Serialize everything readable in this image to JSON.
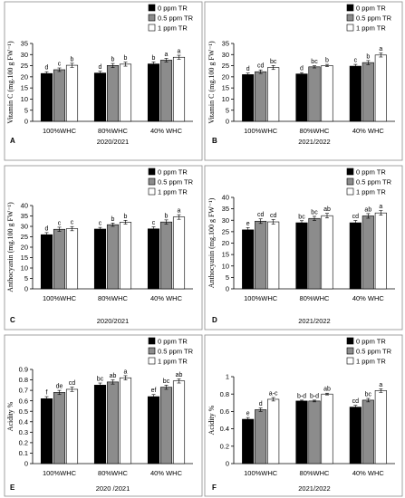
{
  "colors": {
    "series": [
      "#000000",
      "#8c8c8c",
      "#ffffff"
    ]
  },
  "chart_data": [
    {
      "type": "bar",
      "panel": "A",
      "ylabel": "Vitamin C (mg.100 g FW⁻¹)",
      "xlabel": "2020/2021",
      "categories": [
        "100%WHC",
        "80%WHC",
        "40% WHC"
      ],
      "ylim": [
        0,
        35
      ],
      "yticks": [
        0,
        5,
        10,
        15,
        20,
        25,
        30,
        35
      ],
      "legend_position": "top-right",
      "grid": false,
      "series": [
        {
          "name": "0 ppm TR",
          "values": [
            21.5,
            21.7,
            25.8
          ],
          "errors": [
            0.8,
            0.8,
            0.9
          ],
          "letters": [
            "d",
            "d",
            "b"
          ]
        },
        {
          "name": "0.5 ppm TR",
          "values": [
            23.2,
            25.1,
            27.5
          ],
          "errors": [
            0.8,
            0.9,
            0.8
          ],
          "letters": [
            "c",
            "b",
            "a"
          ]
        },
        {
          "name": "1 ppm TR",
          "values": [
            25.2,
            25.7,
            28.8
          ],
          "errors": [
            0.9,
            0.9,
            0.9
          ],
          "letters": [
            "b",
            "b",
            "a"
          ]
        }
      ]
    },
    {
      "type": "bar",
      "panel": "B",
      "ylabel": "Vitamin C (mg.100 g FW⁻¹)",
      "xlabel": "2021/2022",
      "categories": [
        "100%WHC",
        "80%WHC",
        "40% WHC"
      ],
      "ylim": [
        0,
        35
      ],
      "yticks": [
        0,
        5,
        10,
        15,
        20,
        25,
        30,
        35
      ],
      "legend_position": "top-right",
      "grid": false,
      "series": [
        {
          "name": "0 ppm TR",
          "values": [
            21.0,
            21.3,
            24.8
          ],
          "errors": [
            0.7,
            0.6,
            0.8
          ],
          "letters": [
            "d",
            "d",
            "c"
          ]
        },
        {
          "name": "0.5 ppm TR",
          "values": [
            22.3,
            24.5,
            26.4
          ],
          "errors": [
            0.8,
            0.5,
            0.9
          ],
          "letters": [
            "cd",
            "bc",
            "b"
          ]
        },
        {
          "name": "1 ppm TR",
          "values": [
            24.2,
            25.1,
            29.8
          ],
          "errors": [
            0.9,
            0.5,
            0.9
          ],
          "letters": [
            "bc",
            "b",
            "a"
          ]
        }
      ]
    },
    {
      "type": "bar",
      "panel": "C",
      "ylabel": "Anthocyanin  (mg.100 g FW⁻¹)",
      "xlabel": "2020/2021",
      "categories": [
        "100%WHC",
        "80%WHC",
        "40% WHC"
      ],
      "ylim": [
        0,
        40
      ],
      "yticks": [
        0,
        5,
        10,
        15,
        20,
        25,
        30,
        35,
        40
      ],
      "legend_position": "top-right",
      "grid": false,
      "series": [
        {
          "name": "0 ppm TR",
          "values": [
            26.0,
            28.7,
            28.8
          ],
          "errors": [
            1.0,
            0.8,
            1.0
          ],
          "letters": [
            "d",
            "c",
            "c"
          ]
        },
        {
          "name": "0.5 ppm TR",
          "values": [
            28.6,
            30.8,
            32.1
          ],
          "errors": [
            1.0,
            0.8,
            1.0
          ],
          "letters": [
            "c",
            "b",
            "b"
          ]
        },
        {
          "name": "1 ppm TR",
          "values": [
            28.9,
            32.0,
            34.5
          ],
          "errors": [
            1.0,
            0.9,
            1.1
          ],
          "letters": [
            "c",
            "b",
            "a"
          ]
        }
      ]
    },
    {
      "type": "bar",
      "panel": "D",
      "ylabel": "Anthocyanin  (mg.100 g FW⁻¹)",
      "xlabel": "2021/2022",
      "categories": [
        "100%WHC",
        "80%WHC",
        "40% WHC"
      ],
      "ylim": [
        0,
        40
      ],
      "yticks": [
        0,
        5,
        10,
        15,
        20,
        25,
        30,
        35,
        40
      ],
      "legend_position": "top-right",
      "grid": false,
      "series": [
        {
          "name": "0 ppm TR",
          "values": [
            25.8,
            28.9,
            28.9
          ],
          "errors": [
            1.0,
            0.9,
            1.0
          ],
          "letters": [
            "e",
            "bc",
            "cd"
          ]
        },
        {
          "name": "0.5 ppm TR",
          "values": [
            29.6,
            30.8,
            31.9
          ],
          "errors": [
            1.0,
            0.9,
            1.0
          ],
          "letters": [
            "cd",
            "bc",
            "ab"
          ]
        },
        {
          "name": "1 ppm TR",
          "values": [
            29.3,
            32.0,
            33.2
          ],
          "errors": [
            1.0,
            1.0,
            1.0
          ],
          "letters": [
            "cd",
            "ab",
            "a"
          ]
        }
      ]
    },
    {
      "type": "bar",
      "panel": "E",
      "ylabel": "Acidity %",
      "xlabel": "2020 /2021",
      "categories": [
        "100%WHC",
        "80%WHC",
        "40% WHC"
      ],
      "ylim": [
        0,
        0.9
      ],
      "yticks": [
        0,
        0.1,
        0.2,
        0.3,
        0.4,
        0.5,
        0.6,
        0.7,
        0.8,
        0.9
      ],
      "legend_position": "top-right",
      "grid": false,
      "series": [
        {
          "name": "0 ppm TR",
          "values": [
            0.62,
            0.75,
            0.64
          ],
          "errors": [
            0.02,
            0.02,
            0.02
          ],
          "letters": [
            "f",
            "bc",
            "ef"
          ]
        },
        {
          "name": "0.5 ppm TR",
          "values": [
            0.68,
            0.78,
            0.73
          ],
          "errors": [
            0.02,
            0.02,
            0.02
          ],
          "letters": [
            "de",
            "ab",
            "bc"
          ]
        },
        {
          "name": "1 ppm TR",
          "values": [
            0.71,
            0.82,
            0.79
          ],
          "errors": [
            0.02,
            0.02,
            0.02
          ],
          "letters": [
            "cd",
            "a",
            "ab"
          ]
        }
      ]
    },
    {
      "type": "bar",
      "panel": "F",
      "ylabel": "Acidity %",
      "xlabel": "2021/2022",
      "categories": [
        "100%WHC",
        "80%WHC",
        "40% WHC"
      ],
      "ylim": [
        0,
        1
      ],
      "yticks": [
        0,
        0.2,
        0.4,
        0.6,
        0.8,
        1
      ],
      "legend_position": "top-right",
      "grid": false,
      "series": [
        {
          "name": "0 ppm TR",
          "values": [
            0.51,
            0.72,
            0.65
          ],
          "errors": [
            0.02,
            0.01,
            0.02
          ],
          "letters": [
            "e",
            "b-d",
            "cd"
          ]
        },
        {
          "name": "0.5 ppm TR",
          "values": [
            0.62,
            0.72,
            0.73
          ],
          "errors": [
            0.02,
            0.01,
            0.02
          ],
          "letters": [
            "d",
            "b-d",
            "bc"
          ]
        },
        {
          "name": "1 ppm TR",
          "values": [
            0.74,
            0.8,
            0.84
          ],
          "errors": [
            0.02,
            0.01,
            0.02
          ],
          "letters": [
            "a-c",
            "ab",
            "a"
          ]
        }
      ]
    }
  ]
}
